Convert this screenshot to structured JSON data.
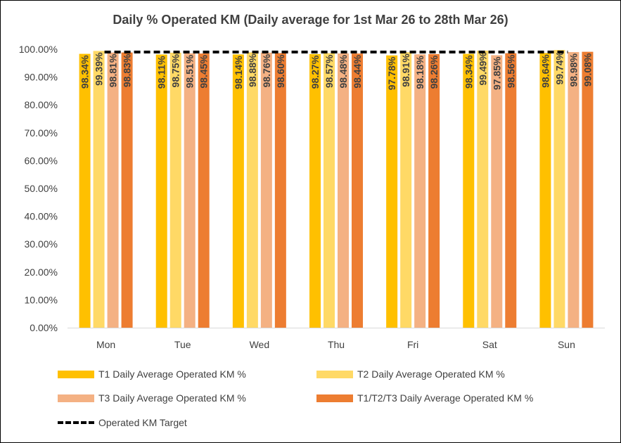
{
  "chart_data": {
    "type": "bar",
    "title": "Daily % Operated KM (Daily average for 1st Mar 26 to 28th Mar 26)",
    "categories": [
      "Mon",
      "Tue",
      "Wed",
      "Thu",
      "Fri",
      "Sat",
      "Sun"
    ],
    "ylim": [
      0,
      100
    ],
    "yticks": [
      "0.00%",
      "10.00%",
      "20.00%",
      "30.00%",
      "40.00%",
      "50.00%",
      "60.00%",
      "70.00%",
      "80.00%",
      "90.00%",
      "100.00%"
    ],
    "grid": false,
    "legend": "bottom",
    "series": [
      {
        "name": "T1 Daily Average Operated KM %",
        "color": "#FFC000",
        "values": [
          98.34,
          98.11,
          98.14,
          98.27,
          97.78,
          98.34,
          98.64
        ],
        "labels": [
          "98.34%",
          "98.11%",
          "98.14%",
          "98.27%",
          "97.78%",
          "98.34%",
          "98.64%"
        ]
      },
      {
        "name": "T2 Daily Average Operated KM %",
        "color": "#FFD966",
        "values": [
          99.39,
          98.75,
          98.88,
          98.57,
          98.91,
          99.49,
          99.74
        ],
        "labels": [
          "99.39%",
          "98.75%",
          "98.88%",
          "98.57%",
          "98.91%",
          "99.49%",
          "99.74%"
        ]
      },
      {
        "name": "T3 Daily Average Operated KM %",
        "color": "#F4B183",
        "values": [
          98.81,
          98.51,
          98.76,
          98.48,
          98.18,
          97.85,
          98.98
        ],
        "labels": [
          "98.81%",
          "98.51%",
          "98.76%",
          "98.48%",
          "98.18%",
          "97.85%",
          "98.98%"
        ]
      },
      {
        "name": "T1/T2/T3 Daily Average Operated KM %",
        "color": "#ED7D31",
        "values": [
          98.83,
          98.45,
          98.6,
          98.44,
          98.26,
          98.56,
          99.08
        ],
        "labels": [
          "98.83%",
          "98.45%",
          "98.60%",
          "98.44%",
          "98.26%",
          "98.56%",
          "99.08%"
        ]
      }
    ],
    "target": {
      "name": "Operated KM Target",
      "type": "line",
      "style": "dashed",
      "color": "#000000",
      "value": 99
    }
  }
}
